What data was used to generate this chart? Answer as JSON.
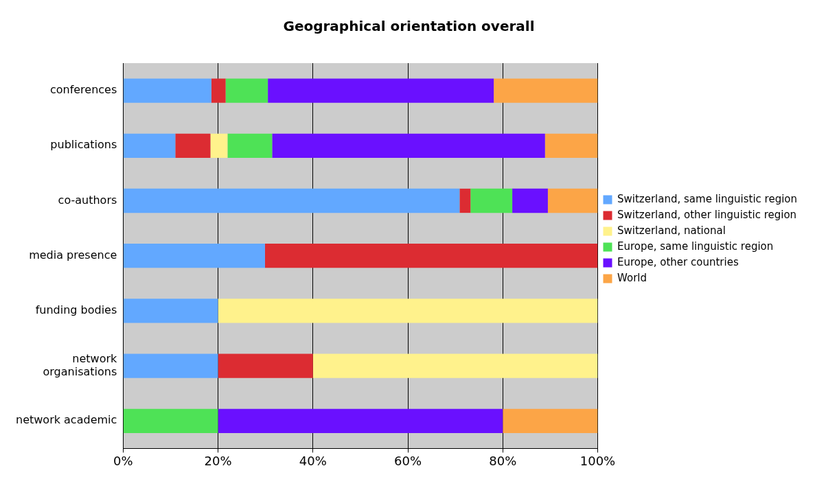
{
  "chart_data": {
    "type": "bar",
    "title": "Geographical orientation overall",
    "orientation": "horizontal",
    "stacked": true,
    "categories": [
      "conferences",
      "publications",
      "co-authors",
      "media presence",
      "funding bodies",
      "network organisations",
      "network academic"
    ],
    "series": [
      {
        "name": "Switzerland, same linguistic region",
        "color": "#62a8ff",
        "values": [
          18.6,
          11.0,
          70.9,
          29.9,
          20,
          20,
          0
        ]
      },
      {
        "name": "Switzerland, other linguistic region",
        "color": "#dc2c32",
        "values": [
          3.0,
          7.4,
          2.3,
          70.1,
          0,
          20,
          0
        ]
      },
      {
        "name": "Switzerland, national",
        "color": "#fff28c",
        "values": [
          0,
          3.6,
          0,
          0,
          80,
          60,
          0
        ]
      },
      {
        "name": "Europe, same linguistic region",
        "color": "#4ee256",
        "values": [
          8.9,
          9.4,
          8.8,
          0,
          0,
          0,
          20
        ]
      },
      {
        "name": "Europe, other countries",
        "color": "#6a10ff",
        "values": [
          47.6,
          57.5,
          7.5,
          0,
          0,
          0,
          60
        ]
      },
      {
        "name": "World",
        "color": "#fca547",
        "values": [
          21.9,
          11.1,
          10.5,
          0,
          0,
          0,
          20
        ]
      }
    ],
    "xlim": [
      0,
      100
    ],
    "xticks": [
      {
        "value": 0,
        "label": "0%"
      },
      {
        "value": 20,
        "label": "20%"
      },
      {
        "value": 40,
        "label": "40%"
      },
      {
        "value": 60,
        "label": "60%"
      },
      {
        "value": 80,
        "label": "80%"
      },
      {
        "value": 100,
        "label": "100%"
      }
    ],
    "grid": "x",
    "legend": "right"
  }
}
